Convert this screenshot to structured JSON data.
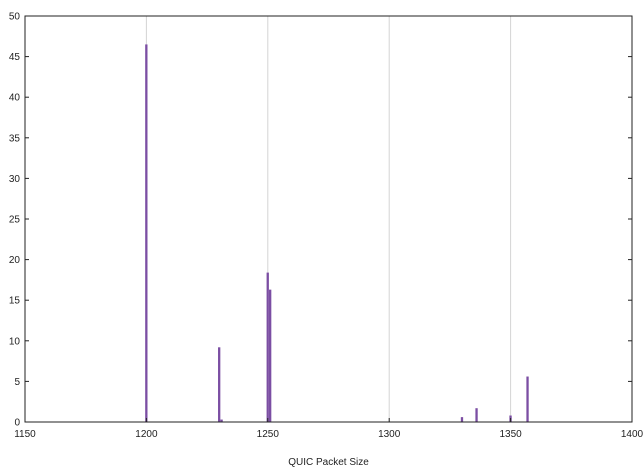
{
  "chart_data": {
    "type": "bar",
    "title": "",
    "xlabel": "QUIC Packet Size",
    "ylabel": "",
    "xlim": [
      1150,
      1400
    ],
    "ylim": [
      0,
      50
    ],
    "xticks": [
      "1150",
      "1200",
      "1250",
      "1300",
      "1350",
      "1400"
    ],
    "yticks": [
      "0",
      "5",
      "10",
      "15",
      "20",
      "25",
      "30",
      "35",
      "40",
      "45",
      "50"
    ],
    "grid": "vertical",
    "bar_color": "#7b4ea3",
    "series": [
      {
        "x": [
          1200,
          1230,
          1231,
          1250,
          1251,
          1330,
          1336,
          1350,
          1357
        ],
        "values": [
          46.5,
          9.2,
          0.3,
          18.4,
          16.3,
          0.6,
          1.7,
          0.8,
          5.6
        ]
      }
    ]
  }
}
